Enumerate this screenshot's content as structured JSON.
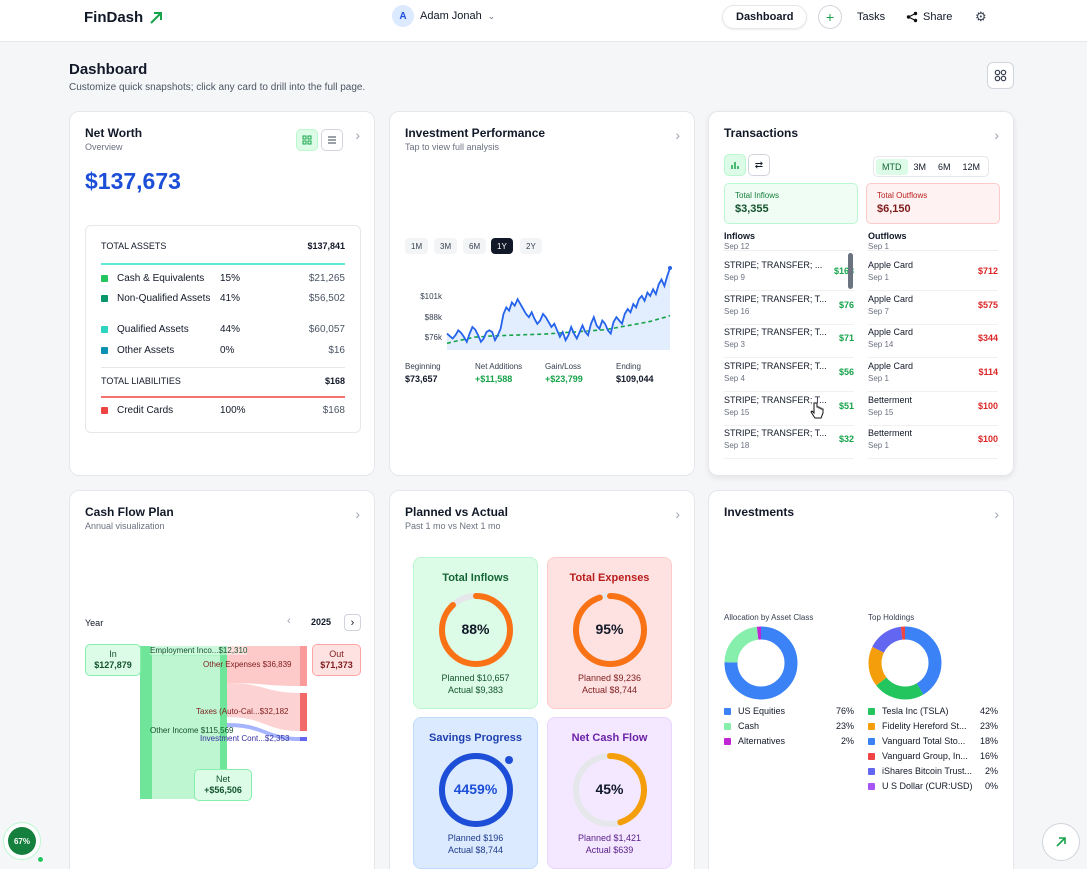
{
  "app": {
    "name": "FinDash"
  },
  "header": {
    "user_initial": "A",
    "user_name": "Adam Jonah",
    "nav_dashboard": "Dashboard",
    "nav_tasks": "Tasks",
    "nav_share": "Share"
  },
  "page": {
    "title": "Dashboard",
    "subtitle": "Customize quick snapshots; click any card to drill into the full page."
  },
  "net_worth": {
    "title": "Net Worth",
    "subtitle": "Overview",
    "value": "$137,673",
    "total_assets_label": "TOTAL ASSETS",
    "total_assets_value": "$137,841",
    "assets": [
      {
        "label": "Cash & Equivalents",
        "pct": "15%",
        "value": "$21,265",
        "color": "#22c55e"
      },
      {
        "label": "Non-Qualified Assets",
        "pct": "41%",
        "value": "$56,502",
        "color": "#059669"
      },
      {
        "label": "Qualified Assets",
        "pct": "44%",
        "value": "$60,057",
        "color": "#2dd4bf"
      },
      {
        "label": "Other Assets",
        "pct": "0%",
        "value": "$16",
        "color": "#0891b2"
      }
    ],
    "total_liabilities_label": "TOTAL LIABILITIES",
    "total_liabilities_value": "$168",
    "liabilities": [
      {
        "label": "Credit Cards",
        "pct": "100%",
        "value": "$168",
        "color": "#ef4444"
      }
    ]
  },
  "investment_performance": {
    "title": "Investment Performance",
    "subtitle": "Tap to view full analysis",
    "ranges": [
      "1M",
      "3M",
      "6M",
      "1Y",
      "2Y"
    ],
    "active_range": "1Y",
    "chart_data": {
      "type": "line",
      "title": "",
      "y_tick_labels": [
        "$101k",
        "$88k",
        "$76k"
      ],
      "ylim": [
        68000,
        118000
      ],
      "series": [
        {
          "values": [
            78000,
            76500,
            75000,
            77000,
            80000,
            78500,
            76000,
            73000,
            78000,
            82000,
            80500,
            77000,
            73000,
            75000,
            79000,
            80000,
            79000,
            74000,
            77000,
            81000,
            90000,
            94000,
            92000,
            97000,
            95000,
            99000,
            96000,
            93000,
            90000,
            88000,
            91000,
            87000,
            84000,
            86000,
            90000,
            88000,
            85000,
            82000,
            84000,
            80000,
            76000,
            79000,
            74000,
            77000,
            82000,
            78000,
            75000,
            79000,
            83000,
            79000,
            77000,
            84000,
            88000,
            83000,
            81000,
            86000,
            84000,
            80000,
            78000,
            85000,
            88000,
            86000,
            84000,
            90000,
            93000,
            91000,
            96000,
            94000,
            99000,
            101000,
            98000,
            103000,
            101000,
            105000,
            102000,
            108000,
            111000,
            107000,
            113000,
            118000
          ]
        },
        {
          "values": [
            72000,
            72800,
            73400,
            74000,
            74600,
            75200,
            75800,
            76000,
            76200,
            76400,
            76600,
            76700,
            76800,
            76900,
            77000,
            77100,
            77200,
            77300,
            77400,
            77500,
            77600,
            77700,
            77800,
            78000,
            78200,
            78400,
            78600,
            78800,
            79000,
            79200,
            79400,
            79600,
            79800,
            80000,
            80200,
            80500,
            81000,
            81500,
            82000,
            82500,
            83000,
            83500,
            84000,
            84500,
            85000,
            85700,
            86500,
            87300,
            88000,
            89000
          ]
        }
      ]
    },
    "stats": [
      {
        "label": "Beginning",
        "value": "$73,657",
        "positive": false
      },
      {
        "label": "Net Additions",
        "value": "+$11,588",
        "positive": true
      },
      {
        "label": "Gain/Loss",
        "value": "+$23,799",
        "positive": true
      },
      {
        "label": "Ending",
        "value": "$109,044",
        "positive": false
      }
    ]
  },
  "transactions": {
    "title": "Transactions",
    "tabs": [
      "MTD",
      "3M",
      "6M",
      "12M"
    ],
    "active_tab": "MTD",
    "total_inflows_label": "Total Inflows",
    "total_inflows": "$3,355",
    "total_outflows_label": "Total Outflows",
    "total_outflows": "$6,150",
    "inflows_label": "Inflows",
    "outflows_label": "Outflows",
    "inflow_partial_date": "Sep 12",
    "outflow_partial_date": "Sep 1",
    "inflows": [
      {
        "name": "STRIPE; TRANSFER; ...",
        "date": "Sep 9",
        "amount": "$168"
      },
      {
        "name": "STRIPE; TRANSFER; T...",
        "date": "Sep 16",
        "amount": "$76"
      },
      {
        "name": "STRIPE; TRANSFER; T...",
        "date": "Sep 3",
        "amount": "$71"
      },
      {
        "name": "STRIPE; TRANSFER; T...",
        "date": "Sep 4",
        "amount": "$56"
      },
      {
        "name": "STRIPE; TRANSFER; T...",
        "date": "Sep 15",
        "amount": "$51"
      },
      {
        "name": "STRIPE; TRANSFER; T...",
        "date": "Sep 18",
        "amount": "$32"
      }
    ],
    "outflows": [
      {
        "name": "Apple Card",
        "date": "Sep 1",
        "amount": "$712"
      },
      {
        "name": "Apple Card",
        "date": "Sep 7",
        "amount": "$575"
      },
      {
        "name": "Apple Card",
        "date": "Sep 14",
        "amount": "$344"
      },
      {
        "name": "Apple Card",
        "date": "Sep 1",
        "amount": "$114"
      },
      {
        "name": "Betterment",
        "date": "Sep 15",
        "amount": "$100"
      },
      {
        "name": "Betterment",
        "date": "Sep 1",
        "amount": "$100"
      }
    ]
  },
  "cash_flow_plan": {
    "title": "Cash Flow Plan",
    "subtitle": "Annual visualization",
    "year_label": "Year",
    "year": "2025",
    "in_label": "In",
    "in_value": "$127,879",
    "out_label": "Out",
    "out_value": "$71,373",
    "net_label": "Net",
    "net_value": "+$56,506",
    "flows": {
      "employment": "Employment Inco...$12,310",
      "other_income": "Other Income $115,569",
      "other_expenses": "Other Expenses $36,839",
      "taxes": "Taxes (Auto-Cal...$32,182",
      "investment": "Investment Cont...$2,353"
    }
  },
  "planned_vs_actual": {
    "title": "Planned vs Actual",
    "subtitle": "Past 1 mo vs Next 1 mo",
    "boxes": [
      {
        "title": "Total Inflows",
        "pct": "88%",
        "fraction": 0.88,
        "planned": "Planned $10,657",
        "actual": "Actual $9,383",
        "color": "#f97316",
        "bg": "#dcfce7",
        "border": "#bbf7d0",
        "title_color": "#166534"
      },
      {
        "title": "Total Expenses",
        "pct": "95%",
        "fraction": 0.95,
        "planned": "Planned $9,236",
        "actual": "Actual $8,744",
        "color": "#f97316",
        "bg": "#fee2e2",
        "border": "#fecaca",
        "title_color": "#b91c1c"
      },
      {
        "title": "Savings Progress",
        "pct": "4459%",
        "fraction": 1.0,
        "planned": "Planned $196",
        "actual": "Actual $8,744",
        "color": "#1d4ed8",
        "bg": "#dbeafe",
        "border": "#bfdbfe",
        "title_color": "#1e40af"
      },
      {
        "title": "Net Cash Flow",
        "pct": "45%",
        "fraction": 0.45,
        "planned": "Planned $1,421",
        "actual": "Actual $639",
        "color": "#f59e0b",
        "bg": "#f3e8ff",
        "border": "#e9d5ff",
        "title_color": "#6b21a8"
      }
    ]
  },
  "investments": {
    "title": "Investments",
    "allocation_label": "Allocation by Asset Class",
    "holdings_label": "Top Holdings",
    "allocation": {
      "type": "pie",
      "items": [
        {
          "label": "US Equities",
          "value": 76,
          "display": "76%",
          "color": "#3b82f6"
        },
        {
          "label": "Cash",
          "value": 23,
          "display": "23%",
          "color": "#86efac"
        },
        {
          "label": "Alternatives",
          "value": 2,
          "display": "2%",
          "color": "#c026d3"
        }
      ]
    },
    "holdings": {
      "type": "pie",
      "items": [
        {
          "label": "Tesla Inc (TSLA)",
          "value": 42,
          "display": "42%",
          "color": "#3b82f6"
        },
        {
          "label": "Fidelity Hereford St...",
          "value": 23,
          "display": "23%",
          "color": "#22c55e"
        },
        {
          "label": "Vanguard Total Sto...",
          "value": 18,
          "display": "18%",
          "color": "#f59e0b"
        },
        {
          "label": "Vanguard Group, In...",
          "value": 16,
          "display": "16%",
          "color": "#6366f1"
        },
        {
          "label": "iShares Bitcoin Trust...",
          "value": 2,
          "display": "2%",
          "color": "#ef4444"
        },
        {
          "label": "U S Dollar (CUR:USD)",
          "value": 0,
          "display": "0%",
          "color": "#a855f7"
        }
      ],
      "legend_colors": [
        "#22c55e",
        "#f59e0b",
        "#3b82f6",
        "#ef4444",
        "#6366f1",
        "#a855f7"
      ]
    }
  },
  "progress_badge": "67%"
}
